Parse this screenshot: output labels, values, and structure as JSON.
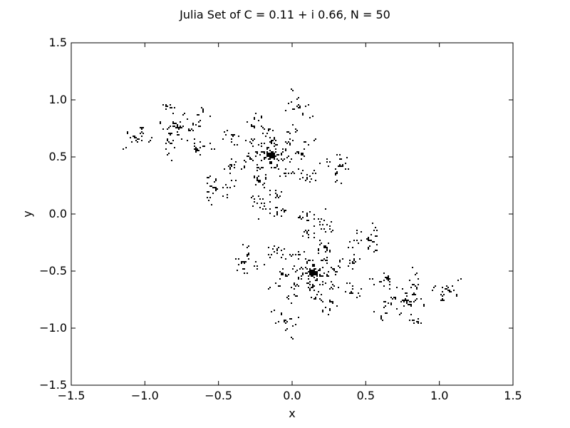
{
  "chart_data": {
    "type": "scatter",
    "title": "Julia Set of C = 0.11 + i 0.66, N = 50",
    "xlabel": "x",
    "ylabel": "y",
    "xlim": [
      -1.5,
      1.5
    ],
    "ylim": [
      -1.5,
      1.5
    ],
    "xticks": [
      -1.5,
      -1.0,
      -0.5,
      0.0,
      0.5,
      1.0,
      1.5
    ],
    "yticks": [
      -1.5,
      -1.0,
      -0.5,
      0.0,
      0.5,
      1.0,
      1.5
    ],
    "xtick_labels": [
      "−1.5",
      "−1.0",
      "−0.5",
      "0.0",
      "0.5",
      "1.0",
      "1.5"
    ],
    "ytick_labels": [
      "−1.5",
      "−1.0",
      "−0.5",
      "0.0",
      "0.5",
      "1.0",
      "1.5"
    ],
    "grid": false,
    "marker_color": "#000000",
    "julia": {
      "c_re": 0.11,
      "c_im": 0.66,
      "iterations": 50
    }
  }
}
